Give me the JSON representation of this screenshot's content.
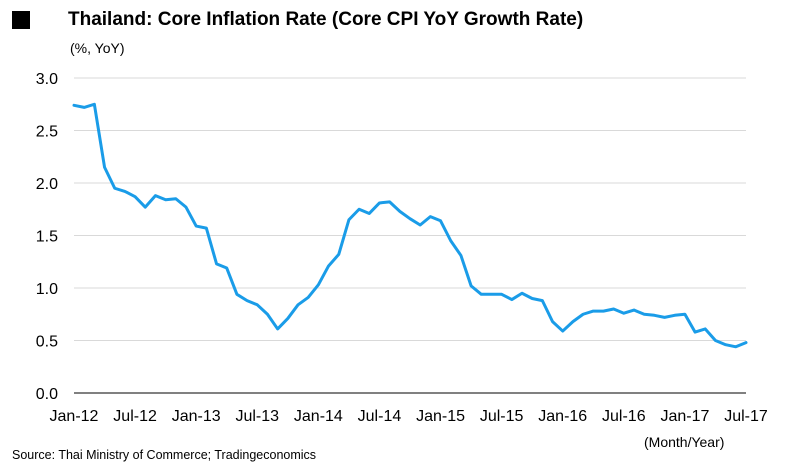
{
  "header": {
    "title": "Thailand: Core Inflation Rate (Core CPI YoY Growth Rate)",
    "unit_label": "(%, YoY)",
    "marker_icon": "black-square-icon"
  },
  "footer": {
    "source": "Source: Thai Ministry of Commerce; Tradingeconomics",
    "x_note": "(Month/Year)"
  },
  "colors": {
    "line": "#1a9ce8",
    "grid": "#d9d9d9",
    "axis": "#000000"
  },
  "chart_data": {
    "type": "line",
    "title": "Thailand: Core Inflation Rate (Core CPI YoY Growth Rate)",
    "ylabel": "(%, YoY)",
    "xlabel": "(Month/Year)",
    "ylim": [
      0.0,
      3.0
    ],
    "yticks": [
      "0.0",
      "0.5",
      "1.0",
      "1.5",
      "2.0",
      "2.5",
      "3.0"
    ],
    "ytick_values": [
      0.0,
      0.5,
      1.0,
      1.5,
      2.0,
      2.5,
      3.0
    ],
    "xticks": [
      "Jan-12",
      "Jul-12",
      "Jan-13",
      "Jul-13",
      "Jan-14",
      "Jul-14",
      "Jan-15",
      "Jul-15",
      "Jan-16",
      "Jul-16",
      "Jan-17",
      "Jul-17"
    ],
    "xtick_index": [
      0,
      6,
      12,
      18,
      24,
      30,
      36,
      42,
      48,
      54,
      60,
      66
    ],
    "grid": true,
    "series": [
      {
        "name": "Core CPI YoY",
        "values": [
          2.74,
          2.72,
          2.75,
          2.15,
          1.95,
          1.92,
          1.87,
          1.77,
          1.88,
          1.84,
          1.85,
          1.77,
          1.59,
          1.57,
          1.23,
          1.19,
          0.94,
          0.88,
          0.84,
          0.75,
          0.61,
          0.71,
          0.84,
          0.91,
          1.03,
          1.21,
          1.32,
          1.65,
          1.75,
          1.71,
          1.81,
          1.82,
          1.73,
          1.66,
          1.6,
          1.68,
          1.64,
          1.45,
          1.31,
          1.02,
          0.94,
          0.94,
          0.94,
          0.89,
          0.95,
          0.9,
          0.88,
          0.68,
          0.59,
          0.68,
          0.75,
          0.78,
          0.78,
          0.8,
          0.76,
          0.79,
          0.75,
          0.74,
          0.72,
          0.74,
          0.75,
          0.58,
          0.61,
          0.5,
          0.46,
          0.44,
          0.48
        ]
      }
    ]
  }
}
